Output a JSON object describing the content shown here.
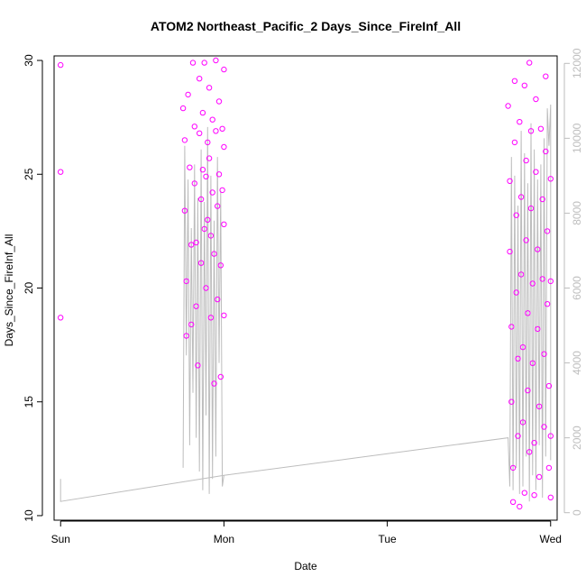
{
  "chart_data": {
    "type": "scatter",
    "title": "ATOM2 Northeast_Pacific_2 Days_Since_FireInf_All",
    "xlabel": "Date",
    "ylabel": "Days_Since_FireInf_All",
    "x_ticks": [
      "Sun",
      "Mon",
      "Tue",
      "Wed"
    ],
    "xlim": [
      -0.04,
      3.04
    ],
    "ylim": [
      9.8,
      30.2
    ],
    "y_ticks": [
      10,
      15,
      20,
      25,
      30
    ],
    "y2lim": [
      -200,
      12200
    ],
    "y2_ticks": [
      0,
      2000,
      4000,
      6000,
      8000,
      10000,
      12000
    ],
    "grid": false,
    "colors": {
      "points": "#ff00ff",
      "line": "#bdbdbd",
      "axis": "#000000",
      "secondary_axis": "#bdbdbd"
    },
    "series": [
      {
        "marker": "open-circle",
        "axis": "left",
        "points": [
          {
            "x": 0.0,
            "y": 29.8
          },
          {
            "x": 0.0,
            "y": 25.1
          },
          {
            "x": 0.0,
            "y": 18.7
          },
          {
            "x": 0.75,
            "y": 27.9
          },
          {
            "x": 0.76,
            "y": 26.5
          },
          {
            "x": 0.76,
            "y": 23.4
          },
          {
            "x": 0.77,
            "y": 20.3
          },
          {
            "x": 0.77,
            "y": 17.9
          },
          {
            "x": 0.78,
            "y": 28.5
          },
          {
            "x": 0.79,
            "y": 25.3
          },
          {
            "x": 0.8,
            "y": 21.9
          },
          {
            "x": 0.8,
            "y": 18.4
          },
          {
            "x": 0.81,
            "y": 29.9
          },
          {
            "x": 0.82,
            "y": 27.1
          },
          {
            "x": 0.82,
            "y": 24.6
          },
          {
            "x": 0.83,
            "y": 22.0
          },
          {
            "x": 0.83,
            "y": 19.2
          },
          {
            "x": 0.84,
            "y": 16.6
          },
          {
            "x": 0.85,
            "y": 29.2
          },
          {
            "x": 0.85,
            "y": 26.8
          },
          {
            "x": 0.86,
            "y": 23.9
          },
          {
            "x": 0.86,
            "y": 21.1
          },
          {
            "x": 0.87,
            "y": 27.7
          },
          {
            "x": 0.87,
            "y": 25.2
          },
          {
            "x": 0.88,
            "y": 22.6
          },
          {
            "x": 0.88,
            "y": 29.9
          },
          {
            "x": 0.89,
            "y": 24.9
          },
          {
            "x": 0.89,
            "y": 20.0
          },
          {
            "x": 0.9,
            "y": 26.4
          },
          {
            "x": 0.9,
            "y": 23.0
          },
          {
            "x": 0.91,
            "y": 28.8
          },
          {
            "x": 0.91,
            "y": 25.7
          },
          {
            "x": 0.92,
            "y": 22.3
          },
          {
            "x": 0.92,
            "y": 18.7
          },
          {
            "x": 0.93,
            "y": 27.4
          },
          {
            "x": 0.93,
            "y": 24.2
          },
          {
            "x": 0.94,
            "y": 21.5
          },
          {
            "x": 0.94,
            "y": 15.8
          },
          {
            "x": 0.95,
            "y": 30.0
          },
          {
            "x": 0.95,
            "y": 26.9
          },
          {
            "x": 0.96,
            "y": 23.6
          },
          {
            "x": 0.96,
            "y": 19.5
          },
          {
            "x": 0.97,
            "y": 28.2
          },
          {
            "x": 0.97,
            "y": 25.0
          },
          {
            "x": 0.98,
            "y": 21.0
          },
          {
            "x": 0.98,
            "y": 16.1
          },
          {
            "x": 0.99,
            "y": 27.0
          },
          {
            "x": 0.99,
            "y": 24.3
          },
          {
            "x": 1.0,
            "y": 29.6
          },
          {
            "x": 1.0,
            "y": 22.8
          },
          {
            "x": 1.0,
            "y": 18.8
          },
          {
            "x": 1.0,
            "y": 26.2
          },
          {
            "x": 2.74,
            "y": 28.0
          },
          {
            "x": 2.75,
            "y": 24.7
          },
          {
            "x": 2.75,
            "y": 21.6
          },
          {
            "x": 2.76,
            "y": 18.3
          },
          {
            "x": 2.76,
            "y": 15.0
          },
          {
            "x": 2.77,
            "y": 12.1
          },
          {
            "x": 2.77,
            "y": 10.6
          },
          {
            "x": 2.78,
            "y": 29.1
          },
          {
            "x": 2.78,
            "y": 26.4
          },
          {
            "x": 2.79,
            "y": 23.2
          },
          {
            "x": 2.79,
            "y": 19.8
          },
          {
            "x": 2.8,
            "y": 16.9
          },
          {
            "x": 2.8,
            "y": 13.5
          },
          {
            "x": 2.81,
            "y": 10.4
          },
          {
            "x": 2.81,
            "y": 27.3
          },
          {
            "x": 2.82,
            "y": 24.0
          },
          {
            "x": 2.82,
            "y": 20.6
          },
          {
            "x": 2.83,
            "y": 17.4
          },
          {
            "x": 2.83,
            "y": 14.1
          },
          {
            "x": 2.84,
            "y": 11.0
          },
          {
            "x": 2.84,
            "y": 28.9
          },
          {
            "x": 2.85,
            "y": 25.6
          },
          {
            "x": 2.85,
            "y": 22.1
          },
          {
            "x": 2.86,
            "y": 18.9
          },
          {
            "x": 2.86,
            "y": 15.5
          },
          {
            "x": 2.87,
            "y": 12.8
          },
          {
            "x": 2.87,
            "y": 29.9
          },
          {
            "x": 2.88,
            "y": 26.9
          },
          {
            "x": 2.88,
            "y": 23.5
          },
          {
            "x": 2.89,
            "y": 20.2
          },
          {
            "x": 2.89,
            "y": 16.7
          },
          {
            "x": 2.9,
            "y": 13.2
          },
          {
            "x": 2.9,
            "y": 10.9
          },
          {
            "x": 2.91,
            "y": 28.3
          },
          {
            "x": 2.91,
            "y": 25.1
          },
          {
            "x": 2.92,
            "y": 21.7
          },
          {
            "x": 2.92,
            "y": 18.2
          },
          {
            "x": 2.93,
            "y": 14.8
          },
          {
            "x": 2.93,
            "y": 11.7
          },
          {
            "x": 2.94,
            "y": 27.0
          },
          {
            "x": 2.95,
            "y": 23.9
          },
          {
            "x": 2.95,
            "y": 20.4
          },
          {
            "x": 2.96,
            "y": 17.1
          },
          {
            "x": 2.96,
            "y": 13.9
          },
          {
            "x": 2.97,
            "y": 29.3
          },
          {
            "x": 2.97,
            "y": 26.0
          },
          {
            "x": 2.98,
            "y": 22.5
          },
          {
            "x": 2.98,
            "y": 19.3
          },
          {
            "x": 2.99,
            "y": 15.7
          },
          {
            "x": 2.99,
            "y": 12.1
          },
          {
            "x": 3.0,
            "y": 13.5
          },
          {
            "x": 3.0,
            "y": 10.8
          },
          {
            "x": 3.0,
            "y": 20.3
          },
          {
            "x": 3.0,
            "y": 24.8
          }
        ]
      },
      {
        "marker": "line",
        "axis": "right",
        "values_y2": [
          [
            0.0,
            900
          ],
          [
            0.0,
            300
          ],
          [
            1.0,
            1000
          ],
          [
            2.74,
            2000
          ],
          [
            2.75,
            700
          ],
          [
            2.76,
            9500
          ],
          [
            2.77,
            600
          ],
          [
            2.78,
            9000
          ],
          [
            2.79,
            1200
          ],
          [
            2.8,
            8200
          ],
          [
            2.81,
            500
          ],
          [
            2.82,
            10200
          ],
          [
            2.83,
            700
          ],
          [
            2.84,
            9600
          ],
          [
            2.85,
            1500
          ],
          [
            2.86,
            8800
          ],
          [
            2.87,
            300
          ],
          [
            2.88,
            10400
          ],
          [
            2.89,
            1000
          ],
          [
            2.9,
            9700
          ],
          [
            2.91,
            600
          ],
          [
            2.92,
            8900
          ],
          [
            2.93,
            1800
          ],
          [
            2.94,
            9300
          ],
          [
            2.95,
            400
          ],
          [
            2.96,
            10000
          ],
          [
            2.97,
            1500
          ],
          [
            2.98,
            10800
          ],
          [
            2.99,
            9800
          ],
          [
            3.0,
            10900
          ],
          [
            3.0,
            1400
          ]
        ],
        "mon_cluster_y2": [
          [
            0.75,
            1200
          ],
          [
            0.76,
            9800
          ],
          [
            0.77,
            4200
          ],
          [
            0.78,
            8900
          ],
          [
            0.79,
            1800
          ],
          [
            0.8,
            7600
          ],
          [
            0.81,
            3200
          ],
          [
            0.82,
            9300
          ],
          [
            0.83,
            2000
          ],
          [
            0.84,
            8400
          ],
          [
            0.85,
            1100
          ],
          [
            0.86,
            9700
          ],
          [
            0.87,
            600
          ],
          [
            0.88,
            8300
          ],
          [
            0.89,
            2600
          ],
          [
            0.9,
            10300
          ],
          [
            0.91,
            500
          ],
          [
            0.92,
            9000
          ],
          [
            0.93,
            900
          ],
          [
            0.94,
            7800
          ],
          [
            0.95,
            1500
          ],
          [
            0.96,
            9500
          ],
          [
            0.97,
            4000
          ],
          [
            0.98,
            8600
          ],
          [
            0.99,
            700
          ],
          [
            1.0,
            1000
          ]
        ]
      }
    ]
  }
}
